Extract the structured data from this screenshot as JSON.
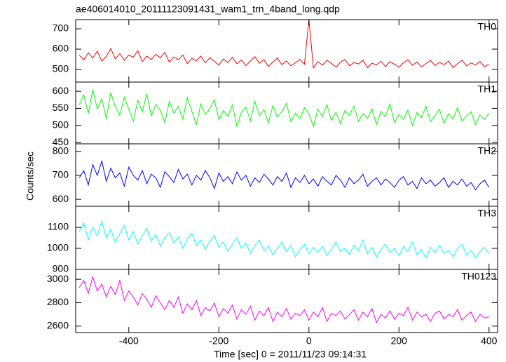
{
  "chart_data": {
    "type": "line",
    "title": "ae406014010_20111123091431_wam1_trn_4band_long.qdp",
    "xlabel": "Time [sec] 0 = 2011/11/23 09:14:31",
    "ylabel": "Counts/sec",
    "xlim": [
      -518,
      419
    ],
    "xticks": [
      -400,
      -200,
      0,
      200,
      400
    ],
    "x": [
      -510,
      -500,
      -490,
      -480,
      -470,
      -460,
      -450,
      -440,
      -430,
      -420,
      -410,
      -400,
      -390,
      -380,
      -370,
      -360,
      -350,
      -340,
      -330,
      -320,
      -310,
      -300,
      -290,
      -280,
      -270,
      -260,
      -250,
      -240,
      -230,
      -220,
      -210,
      -200,
      -190,
      -180,
      -170,
      -160,
      -150,
      -140,
      -130,
      -120,
      -110,
      -100,
      -90,
      -80,
      -70,
      -60,
      -50,
      -40,
      -30,
      -20,
      -10,
      0,
      10,
      20,
      30,
      40,
      50,
      60,
      70,
      80,
      90,
      100,
      110,
      120,
      130,
      140,
      150,
      160,
      170,
      180,
      190,
      200,
      210,
      220,
      230,
      240,
      250,
      260,
      270,
      280,
      290,
      300,
      310,
      320,
      330,
      340,
      350,
      360,
      370,
      380,
      390,
      400
    ],
    "series": [
      {
        "name": "TH0",
        "color": "#ff0000",
        "ylim": [
          438,
          745
        ],
        "yticks": [
          500,
          600,
          700
        ],
        "values": [
          570,
          548,
          582,
          556,
          590,
          541,
          565,
          603,
          552,
          578,
          545,
          571,
          560,
          592,
          538,
          566,
          549,
          575,
          557,
          584,
          536,
          562,
          548,
          571,
          529,
          555,
          543,
          566,
          532,
          558,
          540,
          521,
          552,
          534,
          560,
          528,
          547,
          519,
          541,
          563,
          530,
          548,
          515,
          537,
          556,
          524,
          542,
          518,
          533,
          550,
          526,
          745,
          508,
          539,
          521,
          545,
          530,
          512,
          536,
          549,
          518,
          534,
          527,
          546,
          509,
          531,
          522,
          540,
          515,
          538,
          526,
          511,
          533,
          548,
          520,
          537,
          513,
          529,
          544,
          519,
          535,
          524,
          541,
          510,
          528,
          546,
          517,
          532,
          522,
          539,
          513,
          526
        ]
      },
      {
        "name": "TH1",
        "color": "#00ff00",
        "ylim": [
          446,
          627
        ],
        "yticks": [
          450,
          500,
          550,
          600
        ],
        "values": [
          560,
          590,
          535,
          605,
          548,
          578,
          520,
          596,
          555,
          530,
          583,
          547,
          512,
          574,
          540,
          592,
          528,
          561,
          545,
          508,
          570,
          536,
          555,
          519,
          582,
          541,
          503,
          563,
          532,
          549,
          575,
          517,
          544,
          527,
          560,
          498,
          538,
          553,
          514,
          571,
          529,
          546,
          507,
          558,
          524,
          541,
          565,
          511,
          536,
          520,
          552,
          533,
          497,
          548,
          526,
          561,
          515,
          539,
          505,
          544,
          530,
          557,
          512,
          535,
          520,
          548,
          503,
          541,
          526,
          563,
          509,
          532,
          518,
          545,
          500,
          538,
          523,
          556,
          511,
          529,
          547,
          506,
          534,
          519,
          552,
          513,
          528,
          540,
          502,
          531,
          517,
          536
        ]
      },
      {
        "name": "TH2",
        "color": "#0000ff",
        "ylim": [
          571,
          832
        ],
        "yticks": [
          600,
          700,
          800
        ],
        "values": [
          690,
          720,
          660,
          745,
          700,
          760,
          675,
          730,
          690,
          710,
          655,
          735,
          700,
          680,
          720,
          665,
          705,
          690,
          650,
          715,
          695,
          670,
          725,
          685,
          705,
          660,
          700,
          680,
          720,
          690,
          645,
          710,
          675,
          695,
          665,
          715,
          680,
          700,
          655,
          690,
          670,
          705,
          685,
          660,
          695,
          675,
          710,
          650,
          690,
          670,
          700,
          665,
          685,
          655,
          695,
          675,
          660,
          700,
          680,
          650,
          690,
          665,
          680,
          705,
          655,
          675,
          690,
          660,
          685,
          670,
          650,
          680,
          695,
          660,
          675,
          645,
          690,
          665,
          680,
          655,
          670,
          690,
          650,
          675,
          660,
          685,
          655,
          670,
          640,
          665,
          680,
          650
        ]
      },
      {
        "name": "TH3",
        "color": "#00ffff",
        "ylim": [
          900,
          1200
        ],
        "yticks": [
          900,
          1000,
          1100
        ],
        "values": [
          1080,
          1120,
          1040,
          1100,
          1060,
          1130,
          1050,
          1090,
          1030,
          1070,
          1110,
          1040,
          1080,
          1020,
          1060,
          1095,
          1035,
          1065,
          1010,
          1050,
          1075,
          1025,
          1055,
          1000,
          1045,
          1070,
          1015,
          1040,
          995,
          1035,
          1060,
          1005,
          1030,
          985,
          1020,
          1050,
          1000,
          1025,
          975,
          1015,
          1040,
          990,
          1010,
          970,
          1000,
          1030,
          985,
          1015,
          960,
          995,
          1020,
          975,
          1005,
          980,
          1010,
          965,
          995,
          1030,
          985,
          1000,
          970,
          1015,
          990,
          1040,
          975,
          1005,
          960,
          995,
          1020,
          980,
          1000,
          965,
          1010,
          985,
          1030,
          970,
          995,
          955,
          1005,
          980,
          1015,
          975,
          990,
          960,
          1000,
          1020,
          970,
          990,
          955,
          985,
          1005,
          975
        ]
      },
      {
        "name": "TH0123",
        "color": "#ff00ff",
        "ylim": [
          2545,
          3085
        ],
        "yticks": [
          2600,
          2800,
          3000
        ],
        "values": [
          2930,
          2990,
          2880,
          3020,
          2900,
          2960,
          2850,
          2940,
          2870,
          2990,
          2820,
          2900,
          2850,
          2780,
          2880,
          2830,
          2760,
          2860,
          2800,
          2740,
          2820,
          2760,
          2850,
          2710,
          2790,
          2740,
          2820,
          2690,
          2760,
          2730,
          2800,
          2680,
          2750,
          2710,
          2780,
          2660,
          2740,
          2700,
          2770,
          2650,
          2730,
          2690,
          2760,
          2640,
          2720,
          2680,
          2750,
          2660,
          2710,
          2690,
          2740,
          2650,
          2720,
          2680,
          2760,
          2640,
          2710,
          2690,
          2730,
          2660,
          2700,
          2740,
          2650,
          2720,
          2680,
          2750,
          2630,
          2700,
          2670,
          2730,
          2660,
          2710,
          2690,
          2760,
          2650,
          2720,
          2680,
          2700,
          2640,
          2710,
          2730,
          2660,
          2700,
          2680,
          2740,
          2650,
          2690,
          2720,
          2640,
          2700,
          2670,
          2680
        ]
      }
    ]
  }
}
